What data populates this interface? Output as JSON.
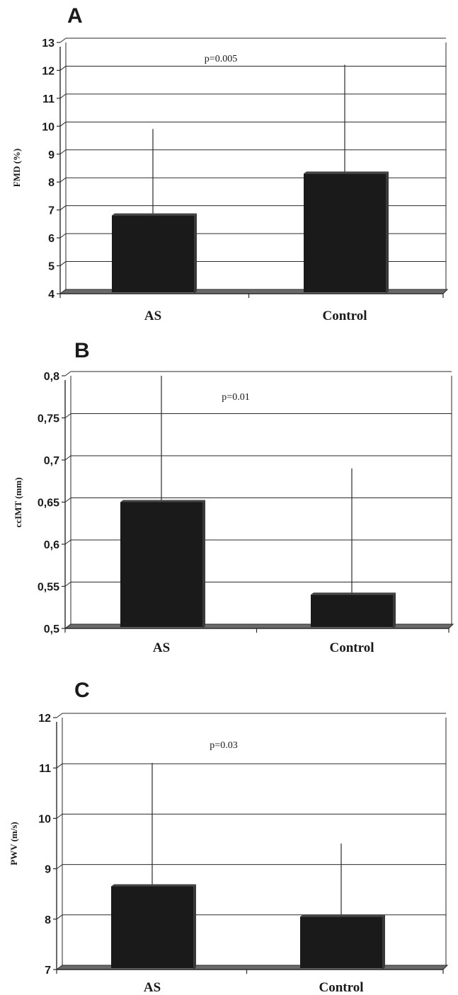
{
  "chart_data": [
    {
      "type": "bar",
      "panel": "A",
      "categories": [
        "AS",
        "Control"
      ],
      "values": [
        6.8,
        8.3
      ],
      "error_upper": [
        9.9,
        12.2
      ],
      "ylabel": "FMD (%)",
      "ylim": [
        4,
        13
      ],
      "yticks": [
        "4",
        "5",
        "6",
        "7",
        "8",
        "9",
        "10",
        "11",
        "12",
        "13"
      ],
      "annotation": "p=0.005",
      "grid": true
    },
    {
      "type": "bar",
      "panel": "B",
      "categories": [
        "AS",
        "Control"
      ],
      "values": [
        0.65,
        0.54
      ],
      "error_upper": [
        0.8,
        0.69
      ],
      "ylabel": "ccIMT (mm)",
      "ylim": [
        0.5,
        0.8
      ],
      "yticks": [
        "0,5",
        "0,55",
        "0,6",
        "0,65",
        "0,7",
        "0,75",
        "0,8"
      ],
      "annotation": "p=0.01",
      "grid": true
    },
    {
      "type": "bar",
      "panel": "C",
      "categories": [
        "AS",
        "Control"
      ],
      "values": [
        8.65,
        8.05
      ],
      "error_upper": [
        11.1,
        9.5
      ],
      "ylabel": "PWV (m/s)",
      "ylim": [
        7,
        12
      ],
      "yticks": [
        "7",
        "8",
        "9",
        "10",
        "11",
        "12"
      ],
      "annotation": "p=0.03",
      "grid": true
    }
  ],
  "colors": {
    "bar": "#1a1a1a",
    "floor": "#6a6a6a",
    "grid": "#2a2a2a"
  }
}
